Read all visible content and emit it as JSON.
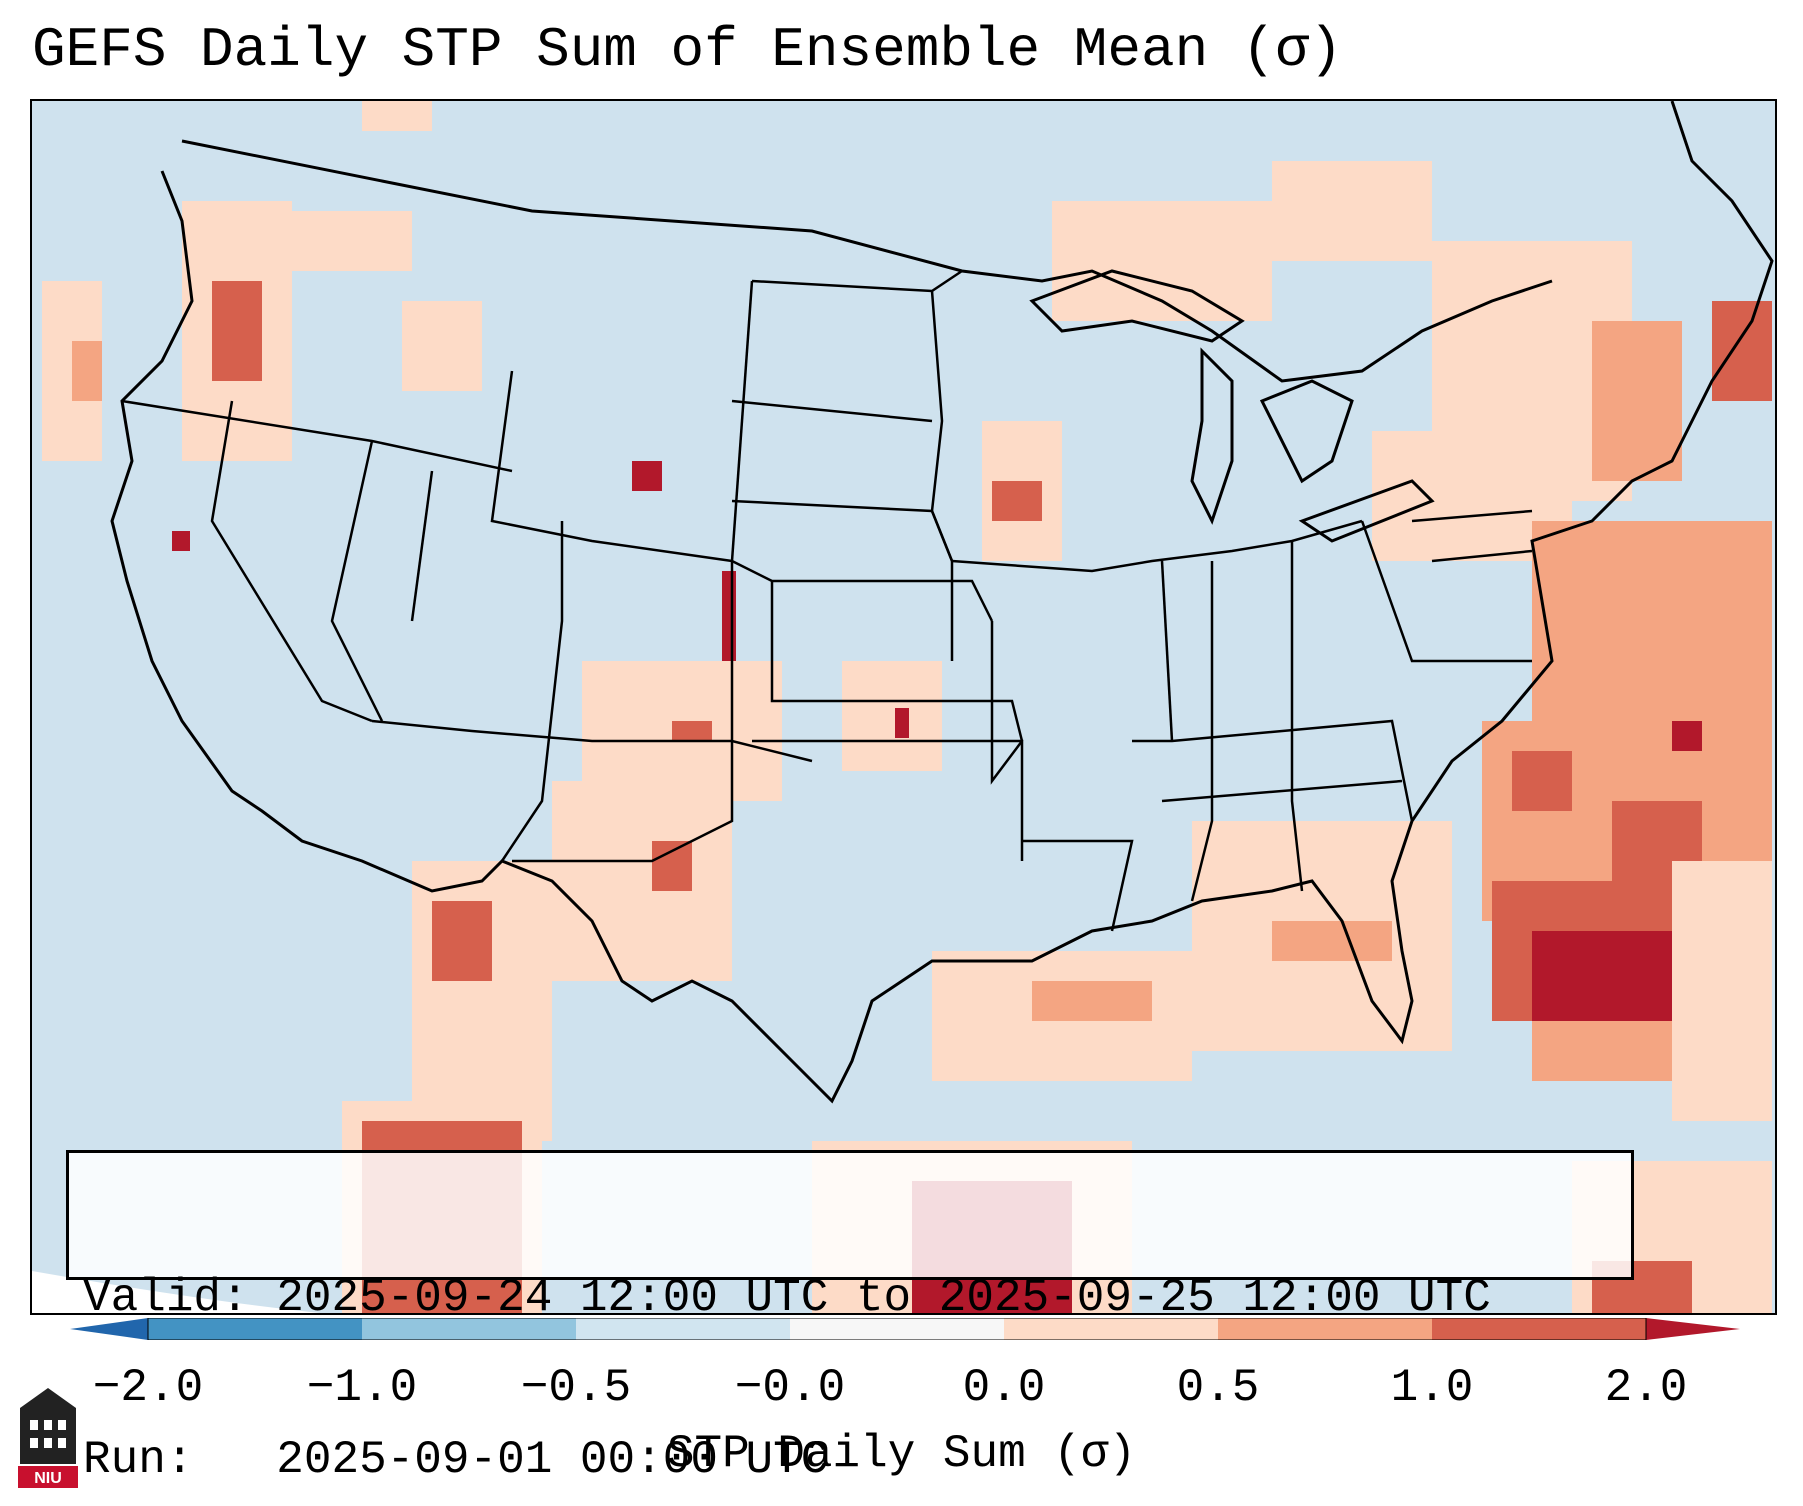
{
  "title": "GEFS Daily STP Sum of Ensemble Mean (σ)",
  "info": {
    "valid_label": "Valid:",
    "valid_range": "2025-09-24 12:00 UTC to 2025-09-25 12:00 UTC",
    "run_label": "Run:",
    "run_time": "2025-09-01 00:00 UTC"
  },
  "colorbar": {
    "label": "STP Daily Sum (σ)",
    "ticks": [
      "−2.0",
      "−1.0",
      "−0.5",
      "−0.0",
      "0.0",
      "0.5",
      "1.0",
      "2.0"
    ],
    "colors": [
      "#4393c3",
      "#92c5de",
      "#d1e5f0",
      "#f7f7f7",
      "#fddbc7",
      "#f4a582",
      "#d6604d",
      "#b2182b"
    ]
  },
  "map_colors": {
    "background": "#cfe2ee",
    "light": "#fddbc7",
    "medium": "#f4a582",
    "strong": "#d6604d",
    "extreme": "#b2182b",
    "outline": "#000000"
  },
  "logo": {
    "text": "NIU",
    "icon": "niu-university-logo-icon"
  }
}
